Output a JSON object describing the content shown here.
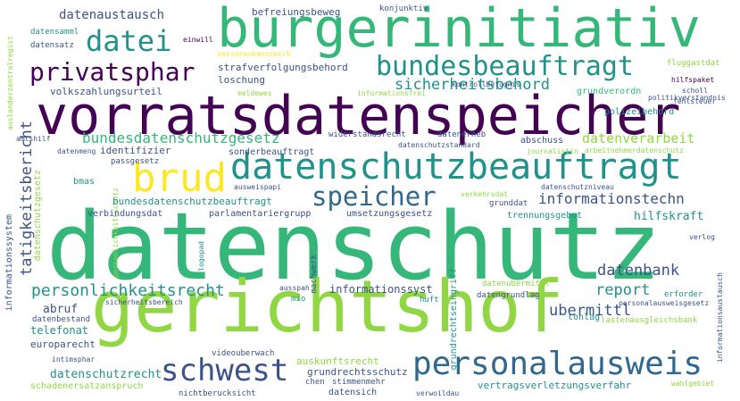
{
  "palette": {
    "purple": "#440154",
    "indigo": "#3b528b",
    "blue": "#31688e",
    "teal": "#21918c",
    "green": "#35b779",
    "lime": "#90d743",
    "yellow": "#fde725"
  },
  "words": {
    "datenschutz": "datenschutz",
    "gerichtshof": "gerichtshof",
    "burgerinitiativ": "burgerinitiativ",
    "vorratsdatenspeicher": "vorratsdatenspeicher",
    "datenschutzbeauftragt": "datenschutzbeauftragt",
    "brud": "brud",
    "personalausweis": "personalausweis",
    "schwest": "schwest",
    "speicher": "speicher",
    "bundesbeauftragt": "bundesbeauftragt",
    "privatsphar": "privatsphar",
    "datei": "datei",
    "sicherheitsbehord": "sicherheitsbehord",
    "bundesdatenschutzgesetz": "bundesdatenschutzgesetz",
    "informationstechn": "informationstechn",
    "datenbank": "datenbank",
    "personlichkeitsrecht": "personlichkeitsrecht",
    "report": "report",
    "ubermittl": "ubermittl",
    "tatigkeitsbericht": "tatigkeitsbericht",
    "datenverarbeit": "datenverarbeit",
    "datenaustausch": "datenaustausch",
    "befreiungsbeweg": "befreiungsbeweg",
    "konjunktiv": "konjunktiv",
    "einwill": "einwill",
    "datensamml": "datensamml",
    "datensatz": "datensatz",
    "personenkennzeich": "personenkennzeich",
    "strafverfolgungsbehord": "strafverfolgungsbehord",
    "loschung": "loschung",
    "volkszahlungsurteil": "volkszahlungsurteil",
    "meldewes": "meldewes",
    "informationsfrei": "informationsfrei",
    "kontrollbefugnis": "kontrollbefugnis",
    "grundverordn": "grundverordn",
    "fluggastdat": "fluggastdat",
    "hilfspaket": "hilfspaket",
    "scholl": "scholl",
    "fehlsteuer": "fehlsteuer",
    "polizeibehord": "polizeibehord",
    "politikverstandnis": "politikverstandnis",
    "auslanderzentralregist": "auslanderzentralregist",
    "tatigkeitsbericht2": "tatigkeitsbericht",
    "datenschutzgesetz": "datenschutzgesetz",
    "informationssystem": "informationssystem",
    "amtshilf": "amtshilf",
    "widerstandsrecht": "widerstandsrecht",
    "datenerheb": "datenerheb",
    "datenschutzstandard": "datenschutzstandard",
    "abschuss": "abschuss",
    "journalistin": "journalistin",
    "arbeitnehmerdatenschutz": "arbeitnehmerdatenschutz",
    "datenmeng": "datenmeng",
    "identifizier": "identifizier",
    "sonderbeauftragt": "sonderbeauftragt",
    "passgesetz": "passgesetz",
    "bmas": "bmas",
    "bundesdatenschutzbeauftragt": "bundesdatenschutzbeauftragt",
    "ausweispapi": "ausweispapi",
    "verkehrsdat": "verkehrsdat",
    "datenschutzniveau": "datenschutzniveau",
    "verbindungsdat": "verbindungsdat",
    "parlamentariergrupp": "parlamentariergrupp",
    "umsetzungsgesetz": "umsetzungsgesetz",
    "grunddat": "grunddat",
    "trennungsgebot": "trennungsgebot",
    "hilfskraft": "hilfskraft",
    "verlog": "verlog",
    "personlichkeitsschutz": "personlichkeitsschutz",
    "logopad": "logopad",
    "machwerk": "machwerk",
    "grundrechtseingriff": "grundrechtseingriff",
    "ausspah": "ausspah",
    "informationssyst": "informationssyst",
    "datenubermittl": "datenubermittl",
    "datengrundlag": "datengrundlag",
    "erforder": "erforder",
    "personalausweisgesetz": "personalausweisgesetz",
    "informationsaustausch": "informationsaustausch",
    "abruf": "abruf",
    "sicherheitsbereich": "sicherheitsbereich",
    "mio": "mio",
    "huft": "huft",
    "datenbestand": "datenbestand",
    "telefonat": "telefonat",
    "europarecht": "europarecht",
    "tonlag": "tonlag",
    "lastenausgleichsbank": "lastenausgleichsbank",
    "intimsphar": "intimsphar",
    "videouberwach": "videouberwach",
    "auskunftsrecht": "auskunftsrecht",
    "datenschutzrecht": "datenschutzrecht",
    "schadenersatzanspruch": "schadenersatzanspruch",
    "grundrechtsschutz": "grundrechtsschutz",
    "chen": "chen",
    "stimmenmehr": "stimmenmehr",
    "datensich": "datensich",
    "vertragsverletzungsverfahr": "vertragsverletzungsverfahr",
    "wahlgebiet": "wahlgebiet",
    "nichtberucksicht": "nichtberucksicht",
    "verwoildau": "verwoildau"
  }
}
